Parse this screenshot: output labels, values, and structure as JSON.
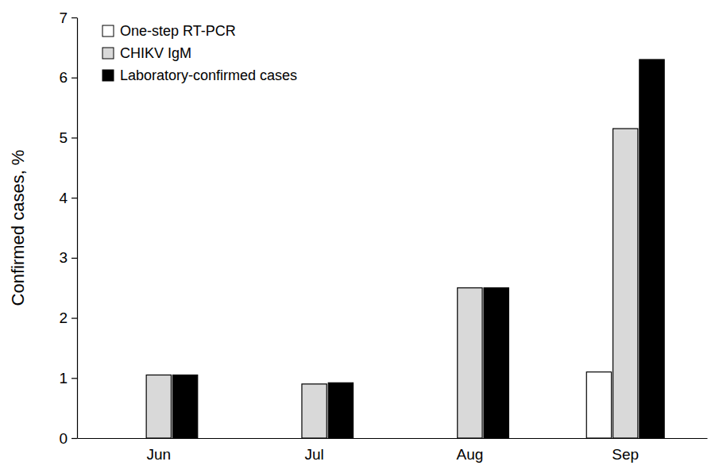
{
  "chart_data": {
    "type": "bar",
    "y_label": "Confirmed cases, %",
    "categories": [
      "Jun",
      "Jul",
      "Aug",
      "Sep"
    ],
    "series": [
      {
        "name": "One-step RT-PCR",
        "color": "#ffffff",
        "values": [
          0,
          0,
          0,
          1.1
        ]
      },
      {
        "name": "CHIKV IgM",
        "color": "#d9d9d9",
        "values": [
          1.05,
          0.9,
          2.5,
          5.15
        ]
      },
      {
        "name": "Laboratory-confirmed cases",
        "color": "#000000",
        "values": [
          1.05,
          0.92,
          2.5,
          6.3
        ]
      }
    ],
    "ylim": [
      0,
      7
    ],
    "yticks": [
      0,
      1,
      2,
      3,
      4,
      5,
      6,
      7
    ],
    "grid": false,
    "legend": "top-left"
  }
}
